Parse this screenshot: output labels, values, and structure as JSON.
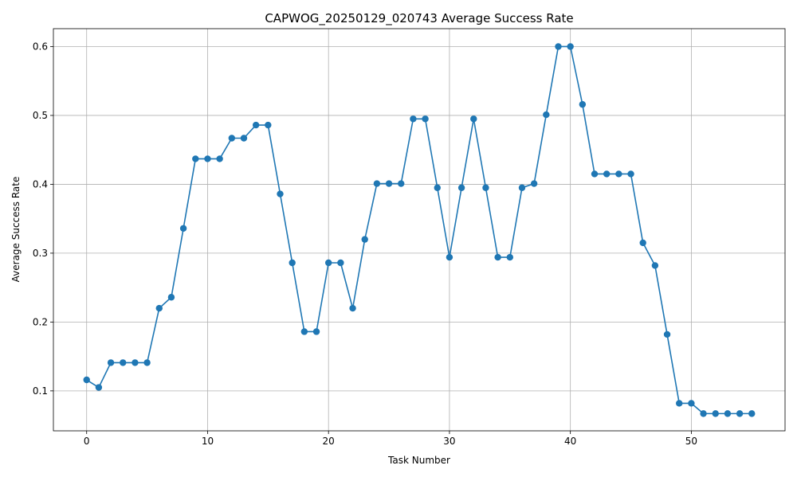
{
  "chart_data": {
    "type": "line",
    "title": "CAPWOG_20250129_020743 Average Success Rate",
    "xlabel": "Task Number",
    "ylabel": "Average Success Rate",
    "xlim": [
      -2.75,
      57.75
    ],
    "ylim": [
      0.042,
      0.626
    ],
    "xticks": [
      0,
      10,
      20,
      30,
      40,
      50
    ],
    "xtick_labels": [
      "0",
      "10",
      "20",
      "30",
      "40",
      "50"
    ],
    "yticks": [
      0.1,
      0.2,
      0.3,
      0.4,
      0.5,
      0.6
    ],
    "ytick_labels": [
      "0.1",
      "0.2",
      "0.3",
      "0.4",
      "0.5",
      "0.6"
    ],
    "grid": true,
    "marker": "circle",
    "color": "#1f77b4",
    "x": [
      0,
      1,
      2,
      3,
      4,
      5,
      6,
      7,
      8,
      9,
      10,
      11,
      12,
      13,
      14,
      15,
      16,
      17,
      18,
      19,
      20,
      21,
      22,
      23,
      24,
      25,
      26,
      27,
      28,
      29,
      30,
      31,
      32,
      33,
      34,
      35,
      36,
      37,
      38,
      39,
      40,
      41,
      42,
      43,
      44,
      45,
      46,
      47,
      48,
      49,
      50,
      51,
      52,
      53,
      54,
      55
    ],
    "y": [
      0.116,
      0.105,
      0.141,
      0.141,
      0.141,
      0.141,
      0.22,
      0.236,
      0.336,
      0.437,
      0.437,
      0.437,
      0.467,
      0.467,
      0.486,
      0.486,
      0.386,
      0.286,
      0.186,
      0.186,
      0.286,
      0.286,
      0.22,
      0.32,
      0.401,
      0.401,
      0.401,
      0.495,
      0.495,
      0.395,
      0.294,
      0.395,
      0.495,
      0.395,
      0.294,
      0.294,
      0.395,
      0.401,
      0.501,
      0.6,
      0.6,
      0.516,
      0.415,
      0.415,
      0.415,
      0.415,
      0.315,
      0.282,
      0.182,
      0.082,
      0.082,
      0.067,
      0.067,
      0.067,
      0.067,
      0.067
    ]
  }
}
